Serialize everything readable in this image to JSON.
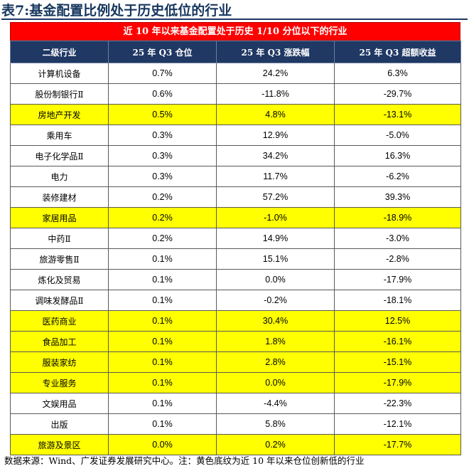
{
  "title": {
    "prefix": "表7:",
    "text": "基金配置比例处于历史低位的行业"
  },
  "banner": "近 10 年以来基金配置处于历史 1/10 分位以下的行业",
  "table": {
    "headers": [
      "二级行业",
      "25 年 Q3 仓位",
      "25 年 Q3 涨跌幅",
      "25 年 Q3 超额收益"
    ],
    "rows": [
      {
        "name": "计算机设备",
        "position": "0.7%",
        "change": "24.2%",
        "excess": "6.3%",
        "highlight": false
      },
      {
        "name": "股份制银行Ⅱ",
        "position": "0.6%",
        "change": "-11.8%",
        "excess": "-29.7%",
        "highlight": false
      },
      {
        "name": "房地产开发",
        "position": "0.5%",
        "change": "4.8%",
        "excess": "-13.1%",
        "highlight": true
      },
      {
        "name": "乘用车",
        "position": "0.3%",
        "change": "12.9%",
        "excess": "-5.0%",
        "highlight": false
      },
      {
        "name": "电子化学品Ⅱ",
        "position": "0.3%",
        "change": "34.2%",
        "excess": "16.3%",
        "highlight": false
      },
      {
        "name": "电力",
        "position": "0.3%",
        "change": "11.7%",
        "excess": "-6.2%",
        "highlight": false
      },
      {
        "name": "装修建材",
        "position": "0.2%",
        "change": "57.2%",
        "excess": "39.3%",
        "highlight": false
      },
      {
        "name": "家居用品",
        "position": "0.2%",
        "change": "-1.0%",
        "excess": "-18.9%",
        "highlight": true
      },
      {
        "name": "中药Ⅱ",
        "position": "0.2%",
        "change": "14.9%",
        "excess": "-3.0%",
        "highlight": false
      },
      {
        "name": "旅游零售Ⅱ",
        "position": "0.1%",
        "change": "15.1%",
        "excess": "-2.8%",
        "highlight": false
      },
      {
        "name": "炼化及贸易",
        "position": "0.1%",
        "change": "0.0%",
        "excess": "-17.9%",
        "highlight": false
      },
      {
        "name": "调味发酵品Ⅱ",
        "position": "0.1%",
        "change": "-0.2%",
        "excess": "-18.1%",
        "highlight": false
      },
      {
        "name": "医药商业",
        "position": "0.1%",
        "change": "30.4%",
        "excess": "12.5%",
        "highlight": true
      },
      {
        "name": "食品加工",
        "position": "0.1%",
        "change": "1.8%",
        "excess": "-16.1%",
        "highlight": true
      },
      {
        "name": "服装家纺",
        "position": "0.1%",
        "change": "2.8%",
        "excess": "-15.1%",
        "highlight": true
      },
      {
        "name": "专业服务",
        "position": "0.1%",
        "change": "0.0%",
        "excess": "-17.9%",
        "highlight": true
      },
      {
        "name": "文娱用品",
        "position": "0.1%",
        "change": "-4.4%",
        "excess": "-22.3%",
        "highlight": false
      },
      {
        "name": "出版",
        "position": "0.1%",
        "change": "5.8%",
        "excess": "-12.1%",
        "highlight": false
      },
      {
        "name": "旅游及景区",
        "position": "0.0%",
        "change": "0.2%",
        "excess": "-17.7%",
        "highlight": true
      }
    ]
  },
  "source": "数据来源：Wind、广发证券发展研究中心。注：黄色底纹为近 10 年以来仓位创新低的行业",
  "colors": {
    "title": "#17375e",
    "banner_bg": "#ff0000",
    "header_bg": "#1f3864",
    "highlight_bg": "#ffff00"
  }
}
